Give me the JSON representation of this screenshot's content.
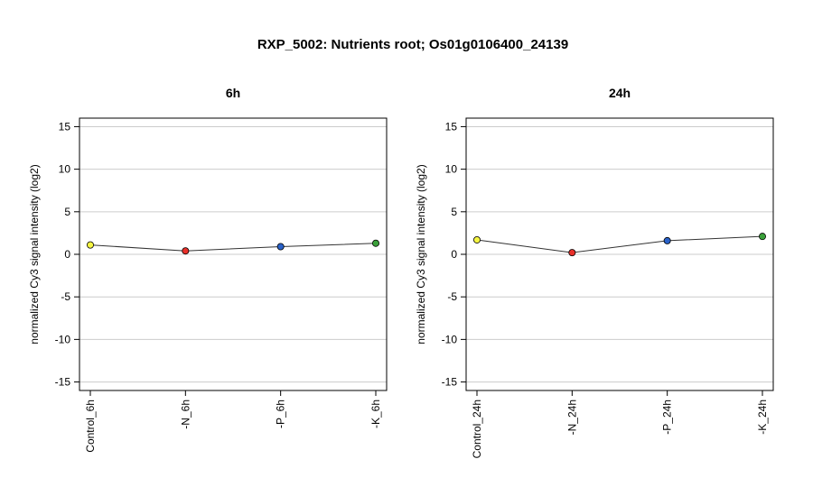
{
  "title": "RXP_5002: Nutrients root; Os01g0106400_24139",
  "chart_data": [
    {
      "type": "line",
      "title": "6h",
      "ylabel": "normalized Cy3 signal intensity (log2)",
      "ylim": [
        -16,
        16
      ],
      "yticks": [
        -15,
        -10,
        -5,
        0,
        5,
        10,
        15
      ],
      "grid": true,
      "categories": [
        "Control_6h",
        "-N_6h",
        "-P_6h",
        "-K_6h"
      ],
      "values": [
        1.1,
        0.4,
        0.9,
        1.3
      ],
      "point_colors": [
        "#f5f542",
        "#e8302a",
        "#2a62c9",
        "#3aa03a"
      ]
    },
    {
      "type": "line",
      "title": "24h",
      "ylabel": "normalized Cy3 signal intensity (log2)",
      "ylim": [
        -16,
        16
      ],
      "yticks": [
        -15,
        -10,
        -5,
        0,
        5,
        10,
        15
      ],
      "grid": true,
      "categories": [
        "Control_24h",
        "-N_24h",
        "-P_24h",
        "-K_24h"
      ],
      "values": [
        1.7,
        0.2,
        1.6,
        2.1
      ],
      "point_colors": [
        "#f5f542",
        "#e8302a",
        "#2a62c9",
        "#3aa03a"
      ]
    }
  ]
}
